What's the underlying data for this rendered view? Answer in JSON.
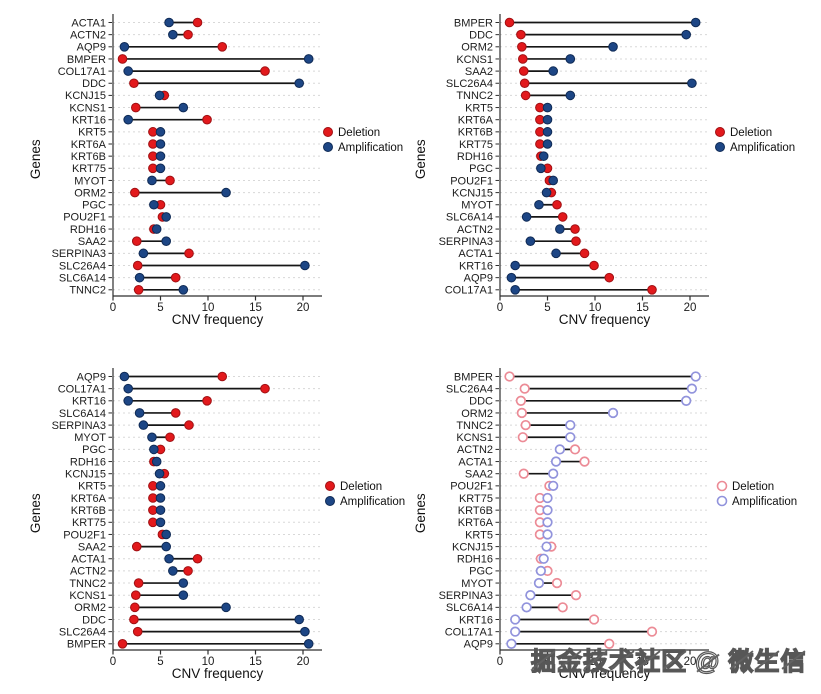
{
  "watermark": {
    "text": "掘金技术社区 @ 微生信"
  },
  "figure": {
    "xlabel": "CNV frequency",
    "ylabel": "Genes",
    "xticks": [
      0,
      5,
      10,
      15,
      20
    ],
    "xlim": [
      0,
      22
    ],
    "legend": {
      "deletion": "Deletion",
      "amplification": "Amplification"
    }
  },
  "colors": {
    "deletion_fill": "#e2191c",
    "deletion_stroke": "#a01013",
    "amplification_fill": "#1d4685",
    "amplification_stroke": "#0f2a55",
    "open_deletion_stroke": "#ec8b96",
    "open_amplification_stroke": "#9193dc",
    "connector": "#161616",
    "grid": "#d8d8d8",
    "axis": "#2e2e2e",
    "text": "#1c1c1c"
  },
  "chart_data": [
    {
      "name": "top-left",
      "type": "scatter",
      "variant": "dumbbell",
      "marker_style": "filled",
      "sort_order": "alphabetical",
      "title": "",
      "xlabel": "CNV frequency",
      "ylabel": "Genes",
      "xlim": [
        0,
        22
      ],
      "xticks": [
        0,
        5,
        10,
        15,
        20
      ],
      "grid": "dashed-horizontal",
      "legend_position": "right-middle",
      "categories": [
        "ACTA1",
        "ACTN2",
        "AQP9",
        "BMPER",
        "COL17A1",
        "DDC",
        "KCNJ15",
        "KCNS1",
        "KRT16",
        "KRT5",
        "KRT6A",
        "KRT6B",
        "KRT75",
        "MYOT",
        "ORM2",
        "PGC",
        "POU2F1",
        "RDH16",
        "SAA2",
        "SERPINA3",
        "SLC26A4",
        "SLC6A14",
        "TNNC2"
      ],
      "series": [
        {
          "name": "Deletion",
          "color_key": "deletion",
          "values": [
            8.9,
            7.9,
            11.5,
            1.0,
            16.0,
            2.2,
            5.4,
            2.4,
            9.9,
            4.2,
            4.2,
            4.2,
            4.2,
            6.0,
            2.3,
            5.0,
            5.2,
            4.3,
            2.5,
            8.0,
            2.6,
            6.6,
            2.7
          ]
        },
        {
          "name": "Amplification",
          "color_key": "amplification",
          "values": [
            5.9,
            6.3,
            1.2,
            20.6,
            1.6,
            19.6,
            4.9,
            7.4,
            1.6,
            5.0,
            5.0,
            5.0,
            5.0,
            4.1,
            11.9,
            4.3,
            5.6,
            4.6,
            5.6,
            3.2,
            20.2,
            2.8,
            7.4
          ]
        }
      ]
    },
    {
      "name": "top-right",
      "type": "scatter",
      "variant": "dumbbell",
      "marker_style": "filled",
      "sort_order": "deletion-ascending",
      "title": "",
      "xlabel": "CNV frequency",
      "ylabel": "Genes",
      "xlim": [
        0,
        22
      ],
      "xticks": [
        0,
        5,
        10,
        15,
        20
      ],
      "grid": "dashed-horizontal",
      "legend_position": "right-middle",
      "categories": [
        "BMPER",
        "DDC",
        "ORM2",
        "KCNS1",
        "SAA2",
        "SLC26A4",
        "TNNC2",
        "KRT5",
        "KRT6A",
        "KRT6B",
        "KRT75",
        "RDH16",
        "PGC",
        "POU2F1",
        "KCNJ15",
        "MYOT",
        "SLC6A14",
        "ACTN2",
        "SERPINA3",
        "ACTA1",
        "KRT16",
        "AQP9",
        "COL17A1"
      ],
      "series": [
        {
          "name": "Deletion",
          "color_key": "deletion",
          "values": [
            1.0,
            2.2,
            2.3,
            2.4,
            2.5,
            2.6,
            2.7,
            4.2,
            4.2,
            4.2,
            4.2,
            4.3,
            5.0,
            5.2,
            5.4,
            6.0,
            6.6,
            7.9,
            8.0,
            8.9,
            9.9,
            11.5,
            16.0
          ]
        },
        {
          "name": "Amplification",
          "color_key": "amplification",
          "values": [
            20.6,
            19.6,
            11.9,
            7.4,
            5.6,
            20.2,
            7.4,
            5.0,
            5.0,
            5.0,
            5.0,
            4.6,
            4.3,
            5.6,
            4.9,
            4.1,
            2.8,
            6.3,
            3.2,
            5.9,
            1.6,
            1.2,
            1.6
          ]
        }
      ]
    },
    {
      "name": "bottom-left",
      "type": "scatter",
      "variant": "dumbbell",
      "marker_style": "filled",
      "sort_order": "amplification-ascending",
      "title": "",
      "xlabel": "CNV frequency",
      "ylabel": "Genes",
      "xlim": [
        0,
        22
      ],
      "xticks": [
        0,
        5,
        10,
        15,
        20
      ],
      "grid": "dashed-horizontal",
      "legend_position": "right-middle",
      "categories": [
        "AQP9",
        "COL17A1",
        "KRT16",
        "SLC6A14",
        "SERPINA3",
        "MYOT",
        "PGC",
        "RDH16",
        "KCNJ15",
        "KRT5",
        "KRT6A",
        "KRT6B",
        "KRT75",
        "POU2F1",
        "SAA2",
        "ACTA1",
        "ACTN2",
        "TNNC2",
        "KCNS1",
        "ORM2",
        "DDC",
        "SLC26A4",
        "BMPER"
      ],
      "series": [
        {
          "name": "Deletion",
          "color_key": "deletion",
          "values": [
            11.5,
            16.0,
            9.9,
            6.6,
            8.0,
            6.0,
            5.0,
            4.3,
            5.4,
            4.2,
            4.2,
            4.2,
            4.2,
            5.2,
            2.5,
            8.9,
            7.9,
            2.7,
            2.4,
            2.3,
            2.2,
            2.6,
            1.0
          ]
        },
        {
          "name": "Amplification",
          "color_key": "amplification",
          "values": [
            1.2,
            1.6,
            1.6,
            2.8,
            3.2,
            4.1,
            4.3,
            4.6,
            4.9,
            5.0,
            5.0,
            5.0,
            5.0,
            5.6,
            5.6,
            5.9,
            6.3,
            7.4,
            7.4,
            11.9,
            19.6,
            20.2,
            20.6
          ]
        }
      ]
    },
    {
      "name": "bottom-right",
      "type": "scatter",
      "variant": "dumbbell",
      "marker_style": "open",
      "sort_order": "amplification-descending",
      "title": "",
      "xlabel": "CNV frequency",
      "ylabel": "Genes",
      "xlim": [
        0,
        22
      ],
      "xticks": [
        0,
        5,
        10,
        15,
        20
      ],
      "grid": "dashed-horizontal",
      "legend_position": "right-middle",
      "categories": [
        "BMPER",
        "SLC26A4",
        "DDC",
        "ORM2",
        "TNNC2",
        "KCNS1",
        "ACTN2",
        "ACTA1",
        "SAA2",
        "POU2F1",
        "KRT75",
        "KRT6B",
        "KRT6A",
        "KRT5",
        "KCNJ15",
        "RDH16",
        "PGC",
        "MYOT",
        "SERPINA3",
        "SLC6A14",
        "KRT16",
        "COL17A1",
        "AQP9"
      ],
      "series": [
        {
          "name": "Deletion",
          "color_key": "deletion",
          "values": [
            1.0,
            2.6,
            2.2,
            2.3,
            2.7,
            2.4,
            7.9,
            8.9,
            2.5,
            5.2,
            4.2,
            4.2,
            4.2,
            4.2,
            5.4,
            4.3,
            5.0,
            6.0,
            8.0,
            6.6,
            9.9,
            16.0,
            11.5
          ]
        },
        {
          "name": "Amplification",
          "color_key": "amplification",
          "values": [
            20.6,
            20.2,
            19.6,
            11.9,
            7.4,
            7.4,
            6.3,
            5.9,
            5.6,
            5.6,
            5.0,
            5.0,
            5.0,
            5.0,
            4.9,
            4.6,
            4.3,
            4.1,
            3.2,
            2.8,
            1.6,
            1.6,
            1.2
          ]
        }
      ]
    }
  ]
}
